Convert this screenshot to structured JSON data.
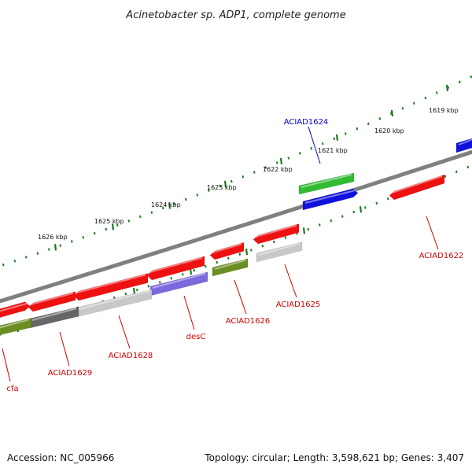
{
  "title": "Acinetobacter sp. ADP1, complete genome",
  "accession_text": "Accession: NC_005966",
  "summary_text": "Topology: circular; Length: 3,598,621 bp; Genes: 3,407",
  "tick_labels": [
    "1619 kbp",
    "1620 kbp",
    "1621 kbp",
    "1622 kbp",
    "1623 kbp",
    "1624 kbp",
    "1625 kbp",
    "1626 kbp"
  ],
  "gene_labels": [
    {
      "name": "ACIAD1624",
      "color": "#0000cc"
    },
    {
      "name": "ACIAD1622",
      "color": "#cc0000"
    },
    {
      "name": "ACIAD1625",
      "color": "#cc0000"
    },
    {
      "name": "ACIAD1626",
      "color": "#cc0000"
    },
    {
      "name": "desC",
      "color": "#cc0000"
    },
    {
      "name": "ACIAD1628",
      "color": "#cc0000"
    },
    {
      "name": "ACIAD1629",
      "color": "#cc0000"
    },
    {
      "name": "cfa",
      "color": "#cc0000"
    }
  ],
  "colors": {
    "backbone": "#7a7a7a",
    "tick": "#1f7a1f",
    "gene_red": "#ee1111",
    "gene_blue": "#1111dd",
    "gene_green": "#33bb33",
    "gene_olive": "#6b8e23",
    "gene_purple": "#7b68dd",
    "gene_lightgray": "#c8c8c8",
    "gene_darkgray": "#666666",
    "label_line_red": "#cc0000",
    "label_line_blue": "#0000cc"
  }
}
